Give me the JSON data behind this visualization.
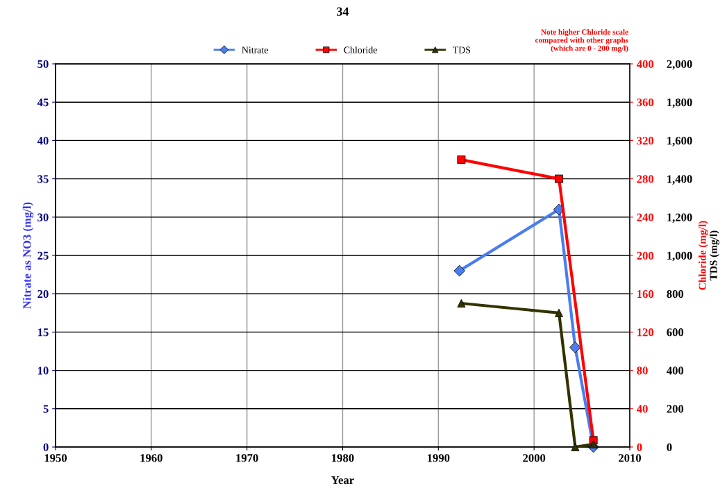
{
  "chart_data": {
    "type": "line",
    "title": "34",
    "xlabel": "Year",
    "ylabel": "Nitrate as NO3 (mg/l)",
    "y2label": "Chloride (mg/l)",
    "y3label": "TDS (mg/l)",
    "annotations": [
      "Note higher Chloride scale\ncompared with other graphs\n(which are 0 - 200 mg/l)"
    ],
    "series": [
      {
        "name": "Nitrate",
        "color": "#4a7ef0",
        "marker": "diamond",
        "x": [
          1992.2,
          2002.6,
          2004.3,
          2006.2
        ],
        "values": [
          23,
          31,
          13,
          0
        ]
      },
      {
        "name": "Chloride",
        "color": "#ff0000",
        "marker": "square",
        "axis": "y2",
        "x": [
          1992.4,
          2002.6,
          2006.2
        ],
        "values": [
          300,
          280,
          7
        ]
      },
      {
        "name": "TDS",
        "color": "#333300",
        "marker": "triangle",
        "axis": "y3",
        "x": [
          1992.4,
          2002.6,
          2004.3,
          2006.2
        ],
        "values": [
          750,
          700,
          0,
          15
        ]
      }
    ],
    "xlim": [
      1950,
      2010
    ],
    "xticks": [
      1950,
      1960,
      1970,
      1980,
      1990,
      2000,
      2010
    ],
    "ylim": [
      0,
      50
    ],
    "yticks": [
      0,
      5,
      10,
      15,
      20,
      25,
      30,
      35,
      40,
      45,
      50
    ],
    "y2lim": [
      0,
      400
    ],
    "y2ticks": [
      0,
      40,
      80,
      120,
      160,
      200,
      240,
      280,
      320,
      360,
      400
    ],
    "y3lim": [
      0,
      2000
    ],
    "y3ticks": [
      0,
      200,
      400,
      600,
      800,
      {
        "value": 1000,
        "label": "1,000"
      },
      {
        "value": 1200,
        "label": "1,200"
      },
      {
        "value": 1400,
        "label": "1,400"
      },
      {
        "value": 1600,
        "label": "1,600"
      },
      {
        "value": 1800,
        "label": "1,800"
      },
      {
        "value": 2000,
        "label": "2,000"
      }
    ],
    "grid": true,
    "legend": "top",
    "line_style": "solid"
  }
}
